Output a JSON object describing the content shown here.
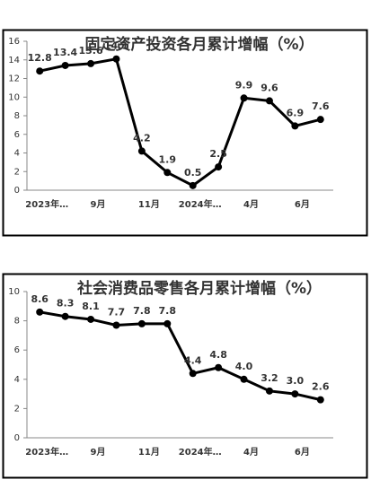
{
  "chart_data": [
    {
      "type": "line",
      "title": "固定资产投资各月累计增幅（%）",
      "categories": [
        "2023年…",
        null,
        "9月",
        null,
        "11月",
        null,
        "2024年…",
        null,
        "4月",
        null,
        "6月",
        null
      ],
      "series": [
        {
          "color": "#000000",
          "values": [
            12.8,
            13.4,
            13.6,
            14.1,
            4.2,
            1.9,
            0.5,
            2.5,
            9.9,
            9.6,
            6.9,
            7.6
          ]
        }
      ],
      "ylim": [
        0,
        16
      ],
      "yticks": [
        0,
        2,
        4,
        6,
        8,
        10,
        12,
        14,
        16
      ]
    },
    {
      "type": "line",
      "title": "社会消费品零售各月累计增幅（%）",
      "categories": [
        "2023年…",
        null,
        "9月",
        null,
        "11月",
        null,
        "2024年…",
        null,
        "4月",
        null,
        "6月",
        null
      ],
      "series": [
        {
          "color": "#000000",
          "values": [
            8.6,
            8.3,
            8.1,
            7.7,
            7.8,
            7.8,
            4.4,
            4.8,
            4.0,
            3.2,
            3.0,
            2.6
          ],
          "value_labels": [
            "8.6",
            "8.3",
            "8.1",
            "7.7",
            "7.8",
            "7.8",
            "4.4",
            "4.8",
            "4.0",
            "3.2",
            "3.0",
            "2.6"
          ]
        }
      ],
      "ylim": [
        0,
        10
      ],
      "yticks": [
        0,
        2,
        4,
        6,
        8,
        10
      ]
    }
  ]
}
